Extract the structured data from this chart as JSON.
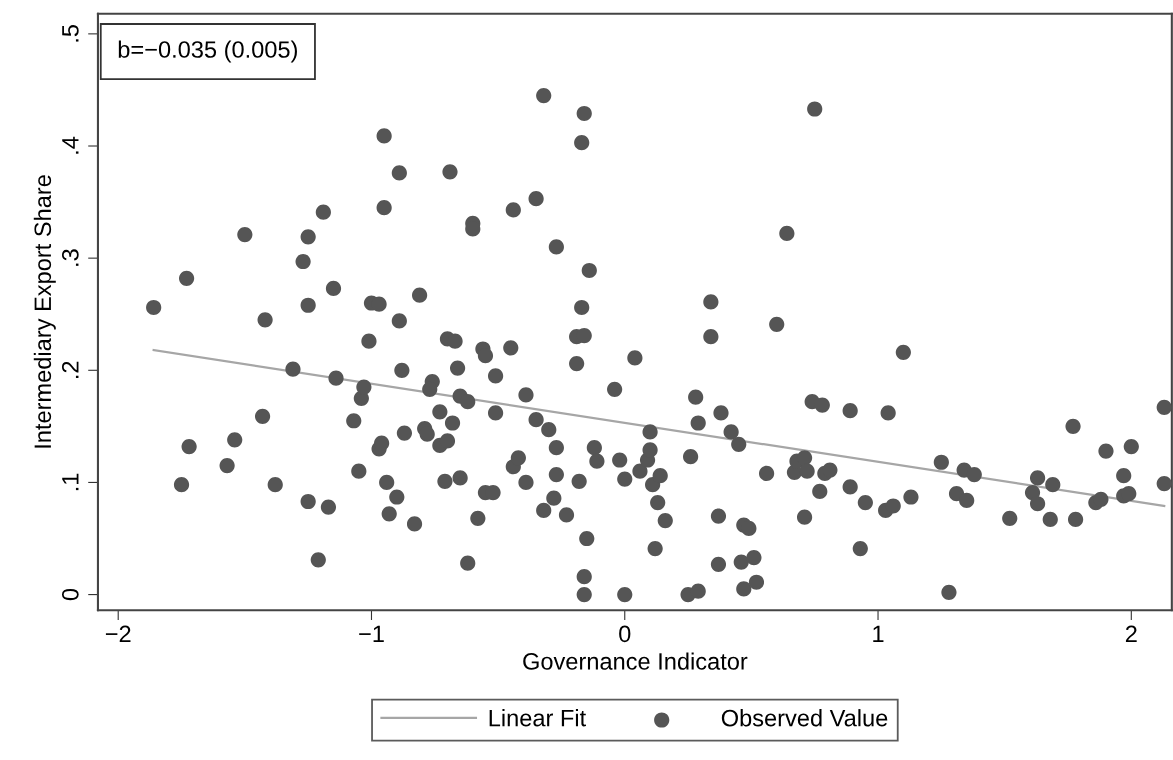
{
  "chart_data": {
    "type": "scatter",
    "xlabel": "Governance Indicator",
    "ylabel": "Intermediary Export Share",
    "annotations": [
      "b=−0.035 (0.005)"
    ],
    "xlim": [
      -2.08,
      2.16
    ],
    "ylim": [
      -0.014,
      0.518
    ],
    "xticks": [
      {
        "value": -2,
        "label": "−2"
      },
      {
        "value": -1,
        "label": "−1"
      },
      0,
      1,
      2
    ],
    "yticks": [
      0,
      {
        "value": 0.1,
        "label": ".1"
      },
      {
        "value": 0.2,
        "label": ".2"
      },
      {
        "value": 0.3,
        "label": ".3"
      },
      {
        "value": 0.4,
        "label": ".4"
      },
      {
        "value": 0.5,
        "label": ".5"
      }
    ],
    "grid": false,
    "legend": "bottom",
    "marker": "circle",
    "series": [
      {
        "name": "Linear Fit",
        "type": "line",
        "color": "#a6a6a6",
        "line_style": "solid",
        "marker": "none",
        "x": [
          -1.86,
          2.13
        ],
        "values": [
          0.218,
          0.079
        ]
      },
      {
        "name": "Observed Value",
        "color": "#555555",
        "x": [
          -1.86,
          -1.73,
          -1.72,
          -1.75,
          -1.57,
          -1.54,
          -1.5,
          -1.42,
          -1.43,
          -1.38,
          -1.31,
          -1.27,
          -1.25,
          -1.25,
          -1.25,
          -1.21,
          -1.19,
          -1.17,
          -1.15,
          -1.14,
          -1.07,
          -1.05,
          -1.04,
          -1.03,
          -1.01,
          -1.0,
          -0.97,
          -0.97,
          -0.96,
          -0.95,
          -0.95,
          -0.94,
          -0.93,
          -0.9,
          -0.89,
          -0.89,
          -0.88,
          -0.87,
          -0.83,
          -0.81,
          -0.79,
          -0.78,
          -0.76,
          -0.77,
          -0.73,
          -0.73,
          -0.71,
          -0.7,
          -0.7,
          -0.69,
          -0.68,
          -0.67,
          -0.66,
          -0.65,
          -0.65,
          -0.62,
          -0.62,
          -0.6,
          -0.6,
          -0.58,
          -0.56,
          -0.55,
          -0.55,
          -0.52,
          -0.51,
          -0.51,
          -0.45,
          -0.44,
          -0.44,
          -0.42,
          -0.39,
          -0.39,
          -0.35,
          -0.35,
          -0.32,
          -0.32,
          -0.3,
          -0.28,
          -0.27,
          -0.27,
          -0.27,
          -0.23,
          -0.19,
          -0.19,
          -0.18,
          -0.17,
          -0.17,
          -0.16,
          -0.16,
          -0.16,
          -0.16,
          -0.15,
          -0.14,
          -0.12,
          -0.11,
          -0.04,
          -0.02,
          0.0,
          0.0,
          0.04,
          0.06,
          0.09,
          0.1,
          0.1,
          0.11,
          0.12,
          0.13,
          0.14,
          0.16,
          0.25,
          0.26,
          0.28,
          0.29,
          0.29,
          0.34,
          0.34,
          0.37,
          0.37,
          0.38,
          0.42,
          0.45,
          0.46,
          0.47,
          0.47,
          0.49,
          0.51,
          0.52,
          0.56,
          0.6,
          0.64,
          0.67,
          0.68,
          0.71,
          0.71,
          0.72,
          0.74,
          0.75,
          0.77,
          0.78,
          0.79,
          0.81,
          0.89,
          0.89,
          0.93,
          0.95,
          1.03,
          1.04,
          1.06,
          1.1,
          1.13,
          1.25,
          1.28,
          1.31,
          1.34,
          1.35,
          1.38,
          1.52,
          1.61,
          1.63,
          1.63,
          1.68,
          1.69,
          1.77,
          1.78,
          1.86,
          1.88,
          1.9,
          1.97,
          1.97,
          2.0,
          1.99,
          2.13,
          2.13
        ],
        "values": [
          0.256,
          0.282,
          0.132,
          0.098,
          0.115,
          0.138,
          0.321,
          0.245,
          0.159,
          0.098,
          0.201,
          0.297,
          0.319,
          0.258,
          0.083,
          0.031,
          0.341,
          0.078,
          0.273,
          0.193,
          0.155,
          0.11,
          0.175,
          0.185,
          0.226,
          0.26,
          0.259,
          0.13,
          0.135,
          0.345,
          0.409,
          0.1,
          0.072,
          0.087,
          0.376,
          0.244,
          0.2,
          0.144,
          0.063,
          0.267,
          0.148,
          0.143,
          0.19,
          0.183,
          0.163,
          0.133,
          0.101,
          0.228,
          0.137,
          0.377,
          0.153,
          0.226,
          0.202,
          0.177,
          0.104,
          0.172,
          0.028,
          0.331,
          0.326,
          0.068,
          0.219,
          0.091,
          0.213,
          0.091,
          0.195,
          0.162,
          0.22,
          0.343,
          0.114,
          0.122,
          0.178,
          0.1,
          0.353,
          0.156,
          0.445,
          0.075,
          0.147,
          0.086,
          0.31,
          0.107,
          0.131,
          0.071,
          0.23,
          0.206,
          0.101,
          0.256,
          0.403,
          0.429,
          0.231,
          0.016,
          0.0,
          0.05,
          0.289,
          0.131,
          0.119,
          0.183,
          0.12,
          0.103,
          0.0,
          0.211,
          0.11,
          0.12,
          0.129,
          0.145,
          0.098,
          0.041,
          0.082,
          0.106,
          0.066,
          0.0,
          0.123,
          0.176,
          0.153,
          0.003,
          0.261,
          0.23,
          0.027,
          0.07,
          0.162,
          0.145,
          0.134,
          0.029,
          0.062,
          0.005,
          0.059,
          0.033,
          0.011,
          0.108,
          0.241,
          0.322,
          0.109,
          0.119,
          0.122,
          0.069,
          0.11,
          0.172,
          0.433,
          0.092,
          0.169,
          0.108,
          0.111,
          0.096,
          0.164,
          0.041,
          0.082,
          0.075,
          0.162,
          0.079,
          0.216,
          0.087,
          0.118,
          0.002,
          0.09,
          0.111,
          0.084,
          0.107,
          0.068,
          0.091,
          0.081,
          0.104,
          0.067,
          0.098,
          0.15,
          0.067,
          0.082,
          0.085,
          0.128,
          0.106,
          0.088,
          0.132,
          0.09,
          0.167,
          0.099
        ]
      }
    ]
  }
}
